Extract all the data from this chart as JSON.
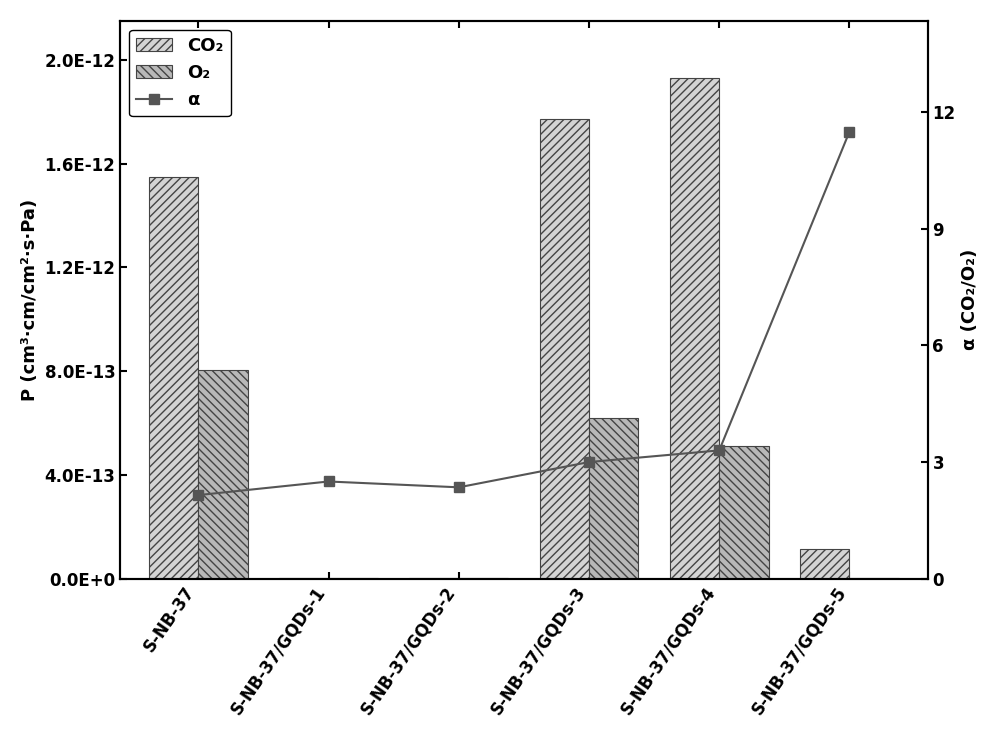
{
  "categories": [
    "S-NB-37",
    "S-NB-37/GQDs-1",
    "S-NB-37/GQDs-2",
    "S-NB-37/GQDs-3",
    "S-NB-37/GQDs-4",
    "S-NB-37/GQDs-5"
  ],
  "co2_values": [
    1.55e-12,
    4e-15,
    4e-15,
    1.77e-12,
    1.93e-12,
    1.15e-13
  ],
  "o2_values": [
    8.05e-13,
    4e-15,
    4e-15,
    6.2e-13,
    5.1e-13,
    4e-15
  ],
  "alpha_values": [
    2.15,
    2.5,
    2.35,
    3.0,
    3.3,
    11.5
  ],
  "ylim_left": [
    0,
    2.15e-12
  ],
  "ylim_right": [
    0,
    14.35
  ],
  "yticks_left": [
    0,
    4e-13,
    8e-13,
    1.2e-12,
    1.6e-12,
    2e-12
  ],
  "ytick_labels_left": [
    "0.0E+0",
    "4.0E-13",
    "8.0E-13",
    "1.2E-12",
    "1.6E-12",
    "2.0E-12"
  ],
  "yticks_right": [
    0,
    3,
    6,
    9,
    12
  ],
  "bar_width": 0.38,
  "co2_hatch": "////",
  "o2_hatch": "\\\\\\\\",
  "co2_facecolor": "#d4d4d4",
  "o2_facecolor": "#b8b8b8",
  "bar_edgecolor": "#444444",
  "alpha_color": "#555555",
  "alpha_marker": "s",
  "alpha_markersize": 7,
  "ylabel_left": "P (cm³·cm/cm²·s·Pa)",
  "ylabel_right": "α (CO₂/O₂)",
  "legend_co2": "CO₂",
  "legend_o2": "O₂",
  "legend_alpha": "α",
  "axis_fontsize": 13,
  "tick_fontsize": 12,
  "legend_fontsize": 13,
  "tick_rotation": 55
}
